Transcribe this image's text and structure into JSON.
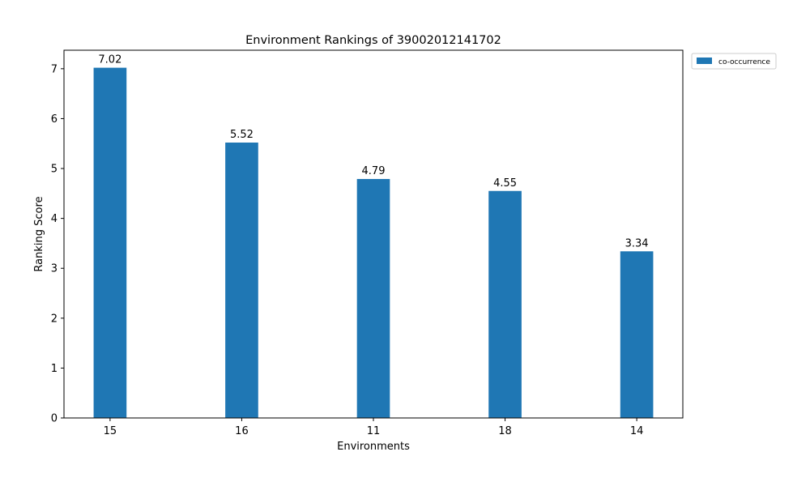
{
  "chart_data": {
    "type": "bar",
    "title": "Environment Rankings of 39002012141702",
    "xlabel": "Environments",
    "ylabel": "Ranking Score",
    "categories": [
      "15",
      "16",
      "11",
      "18",
      "14"
    ],
    "series": [
      {
        "name": "co-occurrence",
        "values": [
          7.02,
          5.52,
          4.79,
          4.55,
          3.34
        ],
        "color": "#1f77b4"
      }
    ],
    "data_labels": [
      "7.02",
      "5.52",
      "4.79",
      "4.55",
      "3.34"
    ],
    "ylim": [
      0,
      7.371
    ],
    "yticks": [
      0,
      1,
      2,
      3,
      4,
      5,
      6,
      7
    ],
    "grid": false,
    "legend_position": "outside-top-right"
  }
}
